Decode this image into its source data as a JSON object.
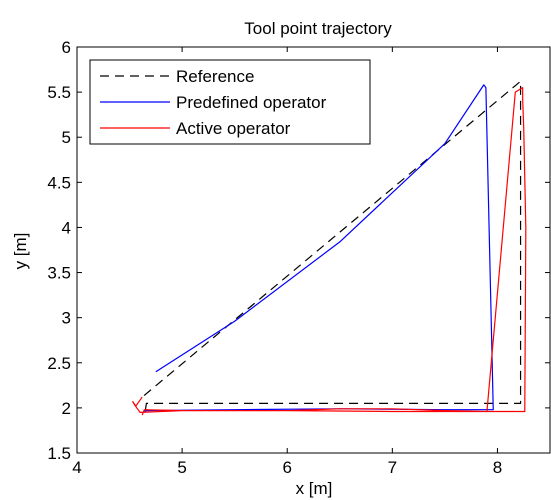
{
  "chart_data": {
    "type": "line",
    "title": "Tool point trajectory",
    "xlabel": "x [m]",
    "ylabel": "y [m]",
    "xlim": [
      4,
      8.5
    ],
    "ylim": [
      1.5,
      6
    ],
    "x_ticks": [
      4,
      5,
      6,
      7,
      8
    ],
    "y_ticks": [
      1.5,
      2,
      2.5,
      3,
      3.5,
      4,
      4.5,
      5,
      5.5,
      6
    ],
    "x_tick_labels": [
      "4",
      "5",
      "6",
      "7",
      "8"
    ],
    "y_tick_labels": [
      "1.5",
      "2",
      "2.5",
      "3",
      "3.5",
      "4",
      "4.5",
      "5",
      "5.5",
      "6"
    ],
    "grid": false,
    "legend_position": "top-left",
    "series": [
      {
        "name": "Reference",
        "color": "#000000",
        "style": "dashed",
        "x": [
          4.65,
          4.66,
          8.22,
          8.22,
          4.6
        ],
        "y": [
          1.97,
          2.05,
          2.05,
          5.62,
          2.1
        ],
        "pen_breaks": [],
        "closed": false
      },
      {
        "name": "Predefined operator",
        "color": "#0000ff",
        "style": "solid",
        "x": [
          4.75,
          5.5,
          6.5,
          7.5,
          7.87,
          7.89,
          7.95,
          7.96,
          7.5,
          6.5,
          5.5,
          4.65,
          4.64
        ],
        "y": [
          2.4,
          2.96,
          3.84,
          4.93,
          5.58,
          5.55,
          2.5,
          1.98,
          1.98,
          1.99,
          1.98,
          1.97,
          1.95
        ],
        "closed": false
      },
      {
        "name": "Active operator",
        "color": "#ff0000",
        "style": "solid",
        "x": [
          4.62,
          4.64,
          5.0,
          5.5,
          6.0,
          6.5,
          7.0,
          7.5,
          7.9,
          8.17,
          8.24,
          8.24,
          8.25,
          8.27,
          8.26,
          7.6,
          7.0,
          6.0,
          5.0,
          4.6,
          4.55,
          4.53,
          4.56,
          4.62
        ],
        "y": [
          1.92,
          1.98,
          1.97,
          1.97,
          1.97,
          1.99,
          1.99,
          1.97,
          1.96,
          5.5,
          5.55,
          5.42,
          5.1,
          4.0,
          1.96,
          1.96,
          1.96,
          1.97,
          1.97,
          1.95,
          2.03,
          2.07,
          2.02,
          2.12
        ],
        "closed": false
      }
    ]
  }
}
